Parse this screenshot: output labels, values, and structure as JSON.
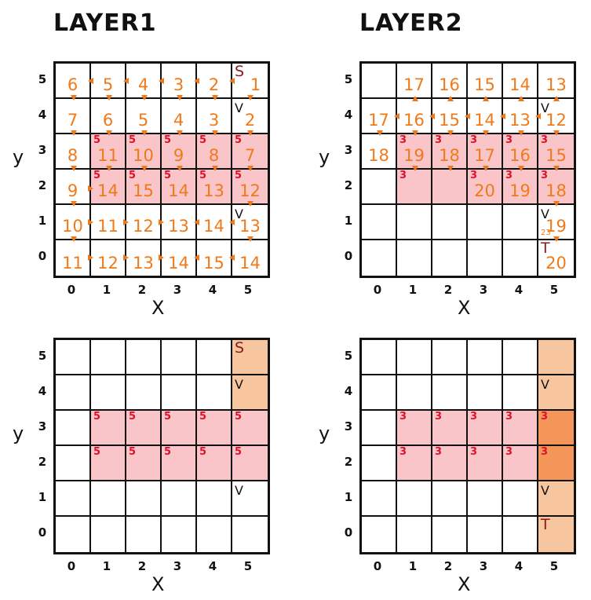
{
  "titles": {
    "layer1": "LAYER1",
    "layer2": "LAYER2"
  },
  "axes": {
    "x_label": "X",
    "y_label": "y",
    "ticks": [
      "0",
      "1",
      "2",
      "3",
      "4",
      "5"
    ]
  },
  "colors": {
    "path_number": "#f07a1a",
    "blocked_fill": "#f9c5c9",
    "badge": "#e0102a",
    "path_fill": "#f8c69e",
    "overlap_fill": "#f4955a",
    "endpoint": "#8b1a1a"
  },
  "panels": [
    {
      "name": "layer1-search",
      "cells": [
        {
          "x": 0,
          "y": 5,
          "num": "6"
        },
        {
          "x": 1,
          "y": 5,
          "num": "5"
        },
        {
          "x": 2,
          "y": 5,
          "num": "4"
        },
        {
          "x": 3,
          "y": 5,
          "num": "3"
        },
        {
          "x": 4,
          "y": 5,
          "num": "2"
        },
        {
          "x": 5,
          "y": 5,
          "num": "1",
          "tag": "S"
        },
        {
          "x": 0,
          "y": 4,
          "num": "7"
        },
        {
          "x": 1,
          "y": 4,
          "num": "6"
        },
        {
          "x": 2,
          "y": 4,
          "num": "5"
        },
        {
          "x": 3,
          "y": 4,
          "num": "4"
        },
        {
          "x": 4,
          "y": 4,
          "num": "3"
        },
        {
          "x": 5,
          "y": 4,
          "num": "2",
          "tag": "V"
        },
        {
          "x": 0,
          "y": 3,
          "num": "8"
        },
        {
          "x": 1,
          "y": 3,
          "num": "11",
          "badge": "5"
        },
        {
          "x": 2,
          "y": 3,
          "num": "10",
          "badge": "5"
        },
        {
          "x": 3,
          "y": 3,
          "num": "9",
          "badge": "5"
        },
        {
          "x": 4,
          "y": 3,
          "num": "8",
          "badge": "5"
        },
        {
          "x": 5,
          "y": 3,
          "num": "7",
          "badge": "5"
        },
        {
          "x": 0,
          "y": 2,
          "num": "9"
        },
        {
          "x": 1,
          "y": 2,
          "num": "14",
          "badge": "5"
        },
        {
          "x": 2,
          "y": 2,
          "num": "15",
          "badge": "5"
        },
        {
          "x": 3,
          "y": 2,
          "num": "14",
          "badge": "5"
        },
        {
          "x": 4,
          "y": 2,
          "num": "13",
          "badge": "5"
        },
        {
          "x": 5,
          "y": 2,
          "num": "12",
          "badge": "5"
        },
        {
          "x": 0,
          "y": 1,
          "num": "10"
        },
        {
          "x": 1,
          "y": 1,
          "num": "11"
        },
        {
          "x": 2,
          "y": 1,
          "num": "12"
        },
        {
          "x": 3,
          "y": 1,
          "num": "13"
        },
        {
          "x": 4,
          "y": 1,
          "num": "14"
        },
        {
          "x": 5,
          "y": 1,
          "num": "13",
          "tag": "V"
        },
        {
          "x": 0,
          "y": 0,
          "num": "11"
        },
        {
          "x": 1,
          "y": 0,
          "num": "12"
        },
        {
          "x": 2,
          "y": 0,
          "num": "13"
        },
        {
          "x": 3,
          "y": 0,
          "num": "14"
        },
        {
          "x": 4,
          "y": 0,
          "num": "15"
        },
        {
          "x": 5,
          "y": 0,
          "num": "14"
        }
      ],
      "blocked_rows": [
        2,
        3
      ],
      "blocked_cols": [
        1,
        2,
        3,
        4,
        5
      ]
    },
    {
      "name": "layer2-search",
      "cells": [
        {
          "x": 1,
          "y": 5,
          "num": "17"
        },
        {
          "x": 2,
          "y": 5,
          "num": "16"
        },
        {
          "x": 3,
          "y": 5,
          "num": "15"
        },
        {
          "x": 4,
          "y": 5,
          "num": "14"
        },
        {
          "x": 5,
          "y": 5,
          "num": "13"
        },
        {
          "x": 0,
          "y": 4,
          "num": "17"
        },
        {
          "x": 1,
          "y": 4,
          "num": "16"
        },
        {
          "x": 2,
          "y": 4,
          "num": "15"
        },
        {
          "x": 3,
          "y": 4,
          "num": "14"
        },
        {
          "x": 4,
          "y": 4,
          "num": "13"
        },
        {
          "x": 5,
          "y": 4,
          "num": "12",
          "tag": "V"
        },
        {
          "x": 0,
          "y": 3,
          "num": "18"
        },
        {
          "x": 1,
          "y": 3,
          "num": "19",
          "badge": "3"
        },
        {
          "x": 2,
          "y": 3,
          "num": "18",
          "badge": "3"
        },
        {
          "x": 3,
          "y": 3,
          "num": "17",
          "badge": "3"
        },
        {
          "x": 4,
          "y": 3,
          "num": "16",
          "badge": "3"
        },
        {
          "x": 5,
          "y": 3,
          "num": "15",
          "badge": "3"
        },
        {
          "x": 1,
          "y": 2,
          "num": "",
          "badge": "3"
        },
        {
          "x": 2,
          "y": 2,
          "num": "",
          "badge": ""
        },
        {
          "x": 3,
          "y": 2,
          "num": "20",
          "badge": "3"
        },
        {
          "x": 4,
          "y": 2,
          "num": "19",
          "badge": "3"
        },
        {
          "x": 5,
          "y": 2,
          "num": "18",
          "badge": "3"
        },
        {
          "x": 5,
          "y": 1,
          "num": "19",
          "tag": "V",
          "sub": "23"
        },
        {
          "x": 5,
          "y": 0,
          "num": "20",
          "tag": "T"
        }
      ],
      "blocked_rows": [
        2,
        3
      ],
      "blocked_cols": [
        1,
        2,
        3,
        4,
        5
      ]
    },
    {
      "name": "layer1-route",
      "cells": [
        {
          "x": 5,
          "y": 5,
          "tag": "S",
          "fill": "path"
        },
        {
          "x": 5,
          "y": 4,
          "tag": "V",
          "fill": "path"
        },
        {
          "x": 1,
          "y": 3,
          "badge": "5"
        },
        {
          "x": 2,
          "y": 3,
          "badge": "5"
        },
        {
          "x": 3,
          "y": 3,
          "badge": "5"
        },
        {
          "x": 4,
          "y": 3,
          "badge": "5"
        },
        {
          "x": 5,
          "y": 3,
          "badge": "5"
        },
        {
          "x": 1,
          "y": 2,
          "badge": "5"
        },
        {
          "x": 2,
          "y": 2,
          "badge": "5"
        },
        {
          "x": 3,
          "y": 2,
          "badge": "5"
        },
        {
          "x": 4,
          "y": 2,
          "badge": "5"
        },
        {
          "x": 5,
          "y": 2,
          "badge": "5"
        },
        {
          "x": 5,
          "y": 1,
          "tag": "V"
        }
      ],
      "blocked_rows": [
        2,
        3
      ],
      "blocked_cols": [
        1,
        2,
        3,
        4,
        5
      ]
    },
    {
      "name": "layer2-route",
      "cells": [
        {
          "x": 5,
          "y": 5,
          "fill": "path"
        },
        {
          "x": 5,
          "y": 4,
          "tag": "V",
          "fill": "path"
        },
        {
          "x": 1,
          "y": 3,
          "badge": "3"
        },
        {
          "x": 2,
          "y": 3,
          "badge": "3"
        },
        {
          "x": 3,
          "y": 3,
          "badge": "3"
        },
        {
          "x": 4,
          "y": 3,
          "badge": "3"
        },
        {
          "x": 5,
          "y": 3,
          "badge": "3",
          "fill": "overlap"
        },
        {
          "x": 1,
          "y": 2,
          "badge": "3"
        },
        {
          "x": 2,
          "y": 2,
          "badge": "3"
        },
        {
          "x": 3,
          "y": 2,
          "badge": "3"
        },
        {
          "x": 4,
          "y": 2,
          "badge": "3"
        },
        {
          "x": 5,
          "y": 2,
          "badge": "3",
          "fill": "overlap"
        },
        {
          "x": 5,
          "y": 1,
          "tag": "V",
          "fill": "path"
        },
        {
          "x": 5,
          "y": 0,
          "tag": "T",
          "fill": "path"
        }
      ],
      "blocked_rows": [
        2,
        3
      ],
      "blocked_cols": [
        1,
        2,
        3,
        4,
        5
      ]
    }
  ]
}
